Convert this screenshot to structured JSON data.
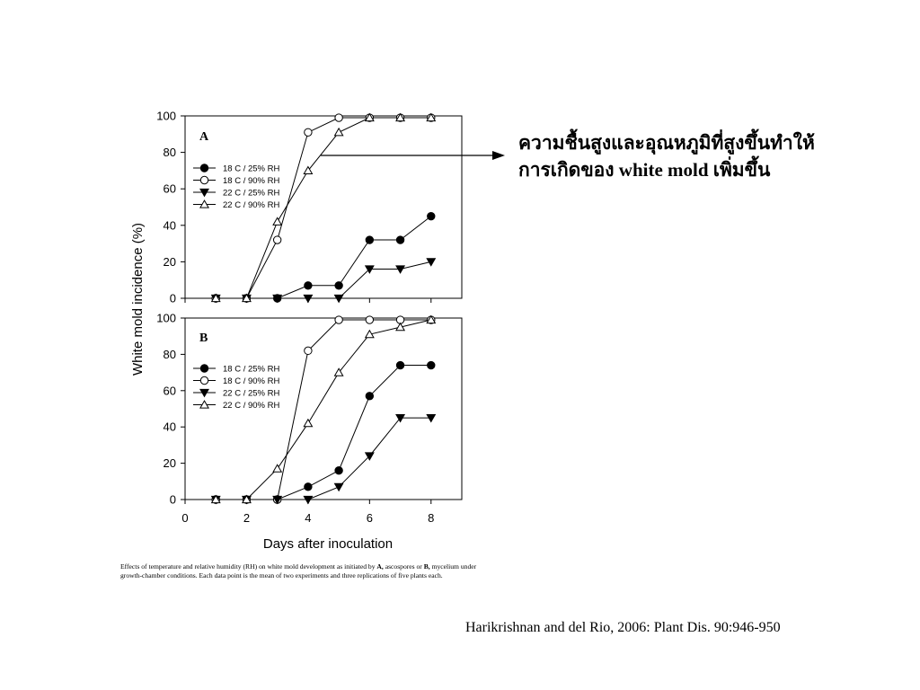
{
  "annotation": {
    "line1": "ความชื้นสูงและอุณหภูมิที่สูงขึ้นทำให้",
    "line2": "การเกิดของ white mold เพิ่มขึ้น"
  },
  "caption": {
    "part1": "Effects of temperature and relative humidity (RH) on white mold development as initiated by",
    "label_a": "A,",
    "part2": " ascospores or ",
    "label_b": "B,",
    "part3": " mycelium under growth-chamber conditions. Each data point is the mean of two experiments and three replications of five plants each."
  },
  "citation": "Harikrishnan and del Rio, 2006: Plant Dis. 90:946-950",
  "chart_data": {
    "type": "line",
    "ylabel": "White mold incidence (%)",
    "xlabel": "Days after inoculation",
    "xlim": [
      0,
      9
    ],
    "ylim": [
      0,
      100
    ],
    "xticks": [
      0,
      2,
      4,
      6,
      8
    ],
    "yticks": [
      0,
      20,
      40,
      60,
      80,
      100
    ],
    "legend_position": "upper-left",
    "panels": [
      {
        "label": "A",
        "series": [
          {
            "name": "18 C / 25% RH",
            "marker": "circle-filled",
            "x": [
              1,
              2,
              3,
              4,
              5,
              6,
              7,
              8
            ],
            "y": [
              0,
              0,
              0,
              7,
              7,
              32,
              32,
              45
            ]
          },
          {
            "name": "18 C / 90% RH",
            "marker": "circle-open",
            "x": [
              1,
              2,
              3,
              4,
              5,
              6,
              7,
              8
            ],
            "y": [
              0,
              0,
              32,
              91,
              99,
              99,
              99,
              99
            ]
          },
          {
            "name": "22 C / 25% RH",
            "marker": "triangle-down-filled",
            "x": [
              1,
              2,
              3,
              4,
              5,
              6,
              7,
              8
            ],
            "y": [
              0,
              0,
              0,
              0,
              0,
              16,
              16,
              20
            ]
          },
          {
            "name": "22 C / 90% RH",
            "marker": "triangle-up-open",
            "x": [
              1,
              2,
              3,
              4,
              5,
              6,
              7,
              8
            ],
            "y": [
              0,
              0,
              42,
              70,
              91,
              99,
              99,
              99
            ]
          }
        ]
      },
      {
        "label": "B",
        "series": [
          {
            "name": "18 C / 25% RH",
            "marker": "circle-filled",
            "x": [
              1,
              2,
              3,
              4,
              5,
              6,
              7,
              8
            ],
            "y": [
              0,
              0,
              0,
              7,
              16,
              57,
              74,
              74
            ]
          },
          {
            "name": "18 C / 90% RH",
            "marker": "circle-open",
            "x": [
              1,
              2,
              3,
              4,
              5,
              6,
              7,
              8
            ],
            "y": [
              0,
              0,
              0,
              82,
              99,
              99,
              99,
              99
            ]
          },
          {
            "name": "22 C / 25% RH",
            "marker": "triangle-down-filled",
            "x": [
              1,
              2,
              3,
              4,
              5,
              6,
              7,
              8
            ],
            "y": [
              0,
              0,
              0,
              0,
              7,
              24,
              45,
              45
            ]
          },
          {
            "name": "22 C / 90% RH",
            "marker": "triangle-up-open",
            "x": [
              1,
              2,
              3,
              4,
              5,
              6,
              7,
              8
            ],
            "y": [
              0,
              0,
              17,
              42,
              70,
              91,
              95,
              99
            ]
          }
        ]
      }
    ]
  }
}
